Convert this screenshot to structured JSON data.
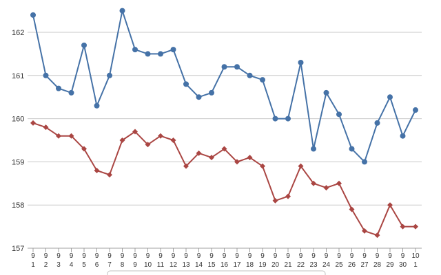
{
  "chart_data": {
    "type": "line",
    "title": "",
    "xlabel": "",
    "ylabel": "",
    "ylim": [
      157,
      162.5
    ],
    "yticks": [
      157,
      158,
      159,
      160,
      161,
      162
    ],
    "grid": true,
    "categories": [
      [
        "9",
        "1"
      ],
      [
        "9",
        "2"
      ],
      [
        "9",
        "3"
      ],
      [
        "9",
        "4"
      ],
      [
        "9",
        "5"
      ],
      [
        "9",
        "6"
      ],
      [
        "9",
        "7"
      ],
      [
        "9",
        "8"
      ],
      [
        "9",
        "9"
      ],
      [
        "9",
        "10"
      ],
      [
        "9",
        "11"
      ],
      [
        "9",
        "12"
      ],
      [
        "9",
        "13"
      ],
      [
        "9",
        "14"
      ],
      [
        "9",
        "15"
      ],
      [
        "9",
        "16"
      ],
      [
        "9",
        "17"
      ],
      [
        "9",
        "18"
      ],
      [
        "9",
        "19"
      ],
      [
        "9",
        "20"
      ],
      [
        "9",
        "21"
      ],
      [
        "9",
        "22"
      ],
      [
        "9",
        "23"
      ],
      [
        "9",
        "24"
      ],
      [
        "9",
        "25"
      ],
      [
        "9",
        "26"
      ],
      [
        "9",
        "27"
      ],
      [
        "9",
        "28"
      ],
      [
        "9",
        "29"
      ],
      [
        "9",
        "30"
      ],
      [
        "10",
        "1"
      ]
    ],
    "series": [
      {
        "color": "#4572a7",
        "marker": "circle",
        "values": [
          162.4,
          161.0,
          160.7,
          160.6,
          161.7,
          160.3,
          161.0,
          162.5,
          161.6,
          161.5,
          161.5,
          161.6,
          160.8,
          160.5,
          160.6,
          161.2,
          161.2,
          161.0,
          160.9,
          160.0,
          160.0,
          161.3,
          159.3,
          160.6,
          160.1,
          159.3,
          159.0,
          159.9,
          160.5,
          159.6,
          160.2
        ]
      },
      {
        "color": "#aa4643",
        "marker": "diamond",
        "values": [
          159.9,
          159.8,
          159.6,
          159.6,
          159.3,
          158.8,
          158.7,
          159.5,
          159.7,
          159.4,
          159.6,
          159.5,
          158.9,
          159.2,
          159.1,
          159.3,
          159.0,
          159.1,
          158.9,
          158.1,
          158.2,
          158.9,
          158.5,
          158.4,
          158.5,
          157.9,
          157.4,
          157.3,
          158.0,
          157.5,
          157.5
        ]
      }
    ]
  }
}
